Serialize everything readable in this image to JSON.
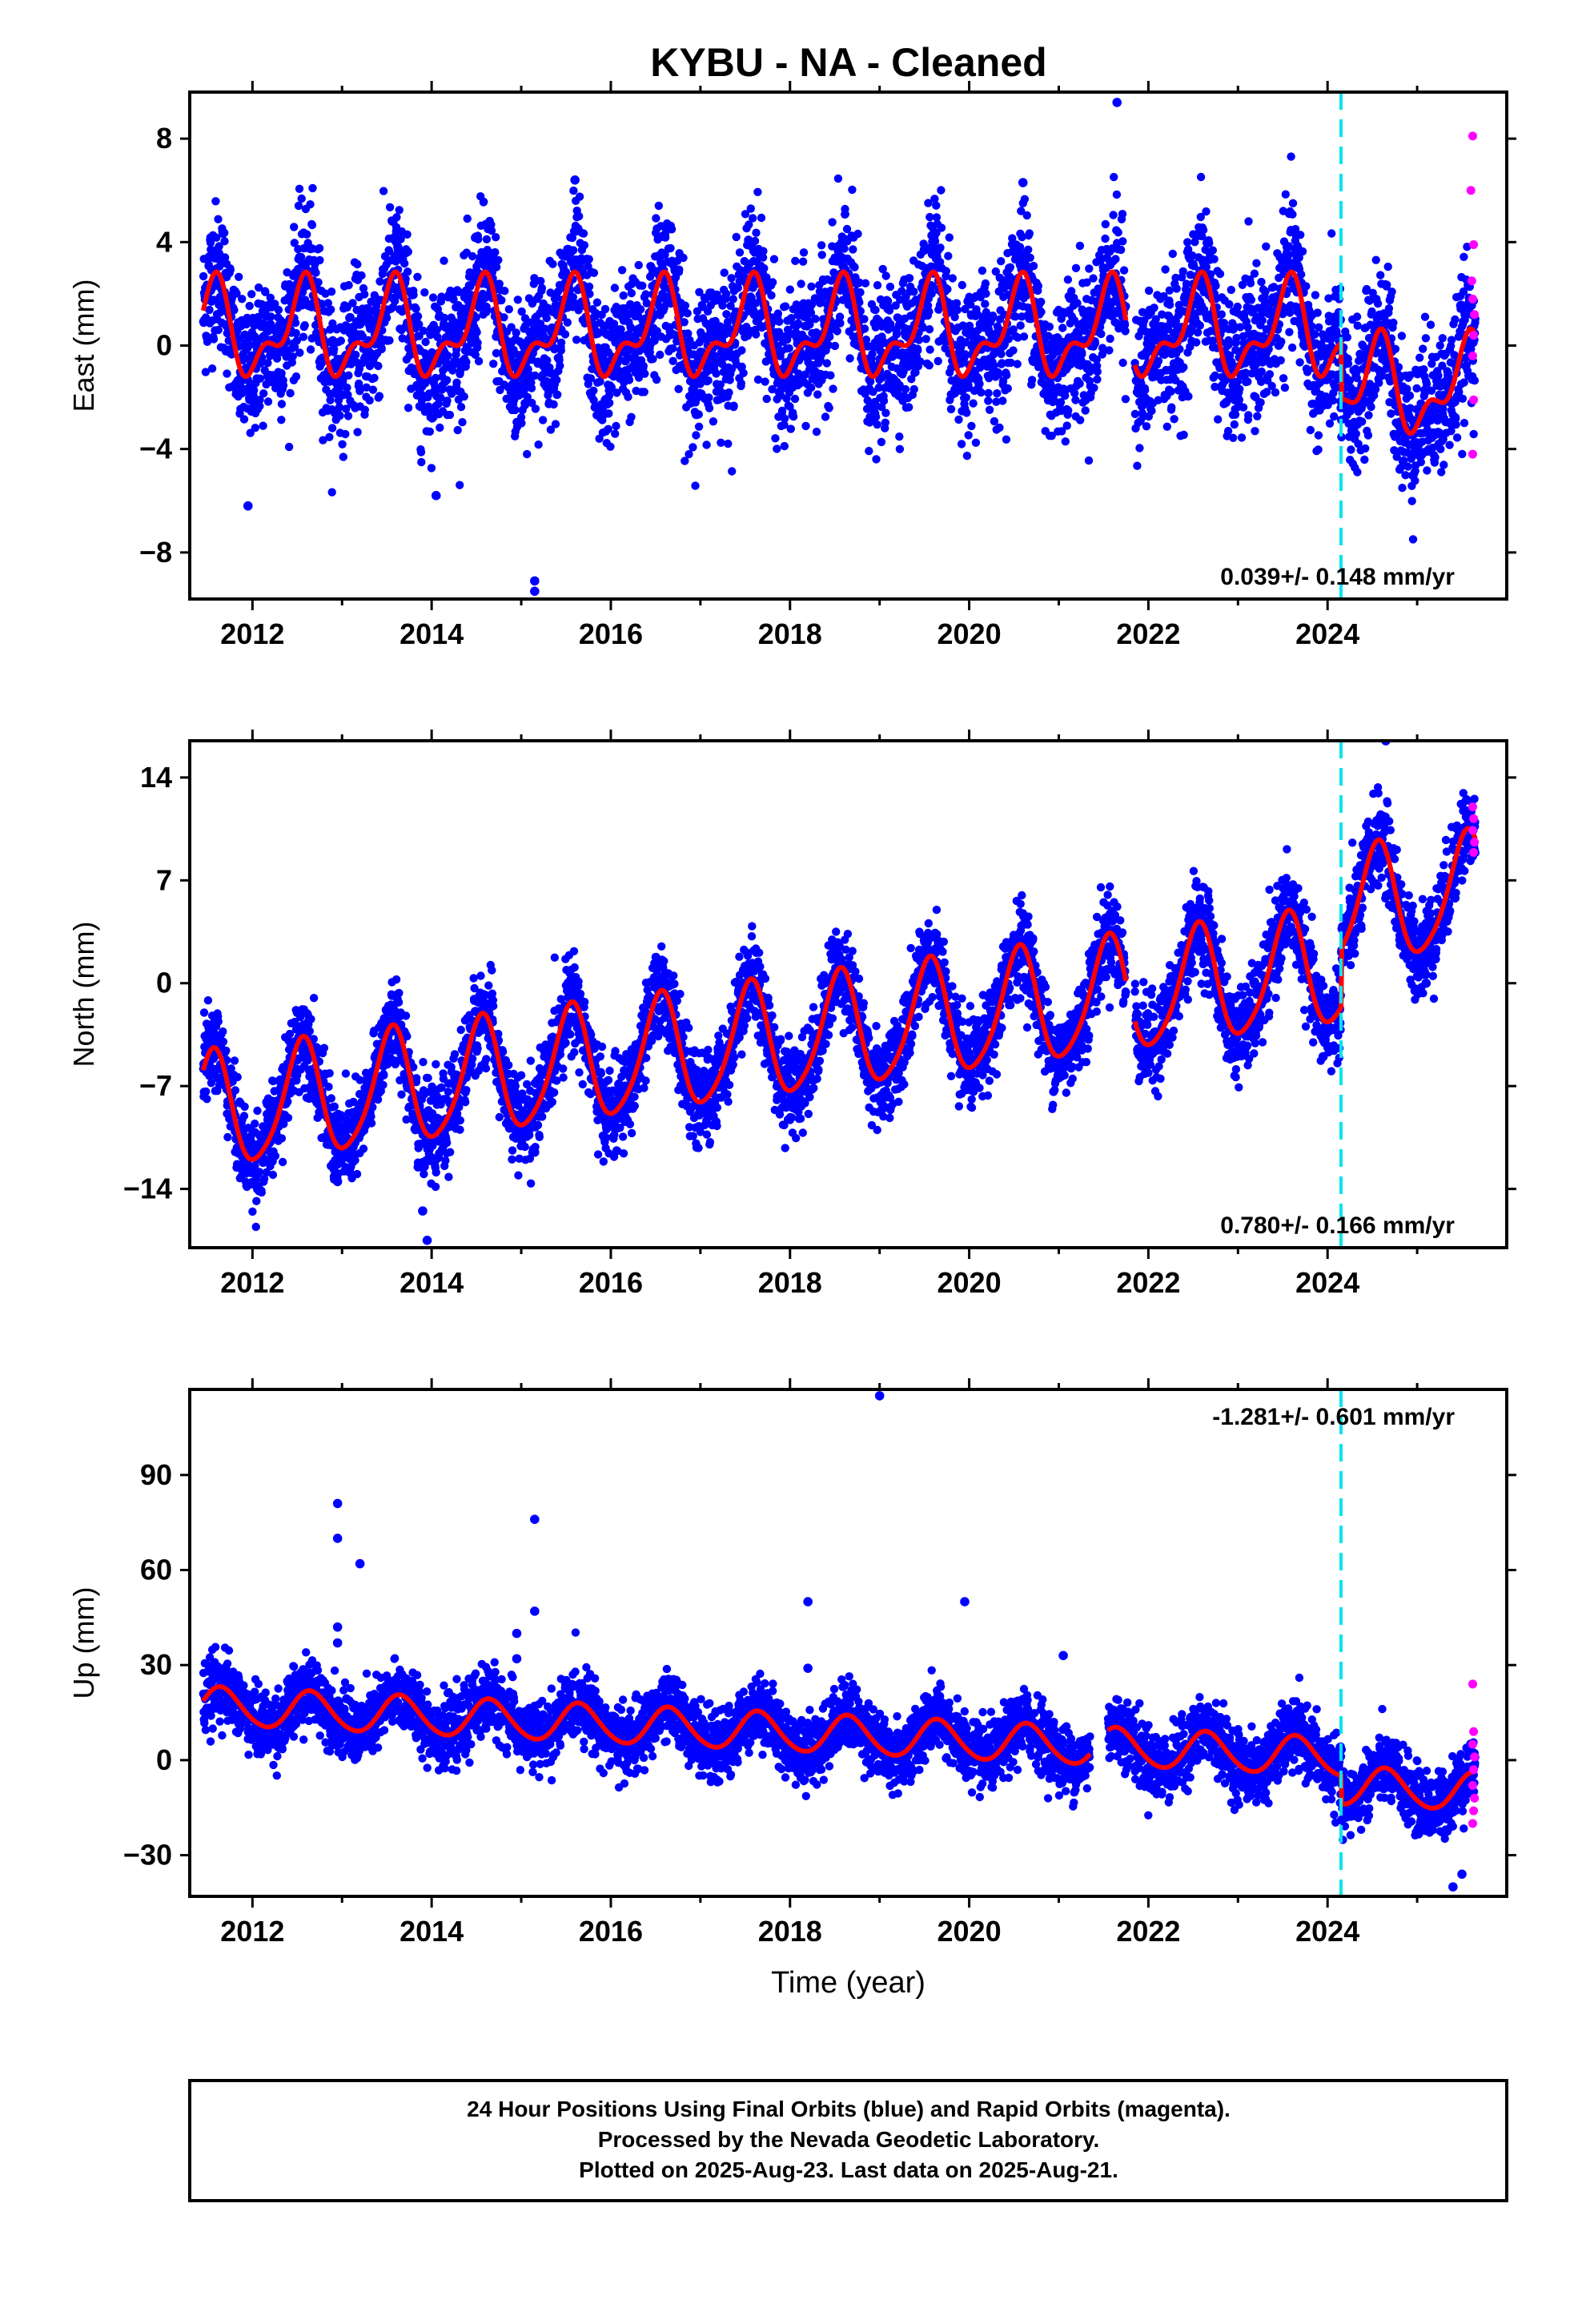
{
  "title": "KYBU  - NA - Cleaned",
  "colors": {
    "final_orbits": "#0000ff",
    "rapid_orbits": "#ff00ff",
    "model_fit": "#ff0000",
    "event_line": "#00e5ee",
    "frame": "#000000"
  },
  "footer": {
    "line1": "24 Hour Positions Using Final Orbits (blue) and Rapid Orbits (magenta).",
    "line2": "Processed by the Nevada Geodetic Laboratory.",
    "line3": "Plotted on 2025-Aug-23. Last data on 2025-Aug-21."
  },
  "chart_data": [
    {
      "type": "scatter",
      "component": "east",
      "ylabel": "East (mm)",
      "xlabel": "",
      "xlim": [
        2011.3,
        2026.0
      ],
      "ylim": [
        -9.8,
        9.8
      ],
      "yticks": [
        8,
        4,
        0,
        -4,
        -8
      ],
      "xticks": [
        2012,
        2014,
        2016,
        2018,
        2020,
        2022,
        2024
      ],
      "rate_label": "0.039+/- 0.148 mm/yr",
      "rate_position": "bottom-right",
      "event_line_x": 2024.15,
      "model": {
        "breaks": [
          {
            "x": 2024.15,
            "offset": -2.2
          }
        ],
        "segments": [
          {
            "from": 2011.45,
            "to": 2021.75,
            "trend": 0.0
          },
          {
            "from": 2021.85,
            "to": 2025.65,
            "trend": 0.0
          }
        ],
        "annual_amp": 1.55,
        "annual_phase": 0.55,
        "semiannual_amp": 0.85,
        "semiannual_phase": 0.62,
        "mean": 0.55,
        "scatter_sd": 1.35
      },
      "outliers": [
        [
          2021.65,
          9.4
        ],
        [
          2015.15,
          -9.1
        ],
        [
          2015.15,
          -9.5
        ],
        [
          2014.05,
          -5.8
        ],
        [
          2011.95,
          -6.2
        ],
        [
          2020.6,
          6.3
        ],
        [
          2015.6,
          6.4
        ]
      ],
      "rapid_points": [
        [
          2025.62,
          8.1
        ],
        [
          2025.6,
          6.0
        ],
        [
          2025.63,
          3.9
        ],
        [
          2025.61,
          2.5
        ],
        [
          2025.62,
          1.8
        ],
        [
          2025.64,
          1.2
        ],
        [
          2025.63,
          0.4
        ],
        [
          2025.62,
          -0.4
        ],
        [
          2025.63,
          -2.1
        ],
        [
          2025.62,
          -4.2
        ]
      ]
    },
    {
      "type": "scatter",
      "component": "north",
      "ylabel": "North (mm)",
      "xlabel": "",
      "xlim": [
        2011.3,
        2026.0
      ],
      "ylim": [
        -18.0,
        16.5
      ],
      "yticks": [
        14,
        7,
        0,
        -7,
        -14
      ],
      "xticks": [
        2012,
        2014,
        2016,
        2018,
        2020,
        2022,
        2024
      ],
      "rate_label": "0.780+/- 0.166 mm/yr",
      "rate_position": "bottom-right",
      "event_line_x": 2024.15,
      "model": {
        "breaks": [
          {
            "x": 2024.15,
            "offset": 4.0
          }
        ],
        "segments": [
          {
            "from": 2011.45,
            "to": 2021.75,
            "trend": 0.78
          },
          {
            "from": 2021.85,
            "to": 2025.65,
            "trend": 0.78
          }
        ],
        "annual_amp": 3.9,
        "annual_phase": 0.55,
        "semiannual_amp": 0.6,
        "semiannual_phase": 0.6,
        "mean": -3.4,
        "scatter_sd": 1.5
      },
      "outliers": [
        [
          2013.95,
          -17.5
        ],
        [
          2013.9,
          -15.5
        ],
        [
          2013.85,
          -12.5
        ],
        [
          2015.15,
          -11.5
        ],
        [
          2012.95,
          -13.5
        ],
        [
          2024.65,
          16.5
        ],
        [
          2025.1,
          0.0
        ],
        [
          2023.95,
          -5.0
        ]
      ],
      "rapid_points": [
        [
          2025.62,
          12.0
        ],
        [
          2025.63,
          11.2
        ],
        [
          2025.62,
          10.4
        ],
        [
          2025.64,
          9.6
        ],
        [
          2025.63,
          8.9
        ]
      ]
    },
    {
      "type": "scatter",
      "component": "up",
      "ylabel": "Up (mm)",
      "xlabel": "Time (year)",
      "xlim": [
        2011.3,
        2026.0
      ],
      "ylim": [
        -43.0,
        117.0
      ],
      "yticks": [
        90,
        60,
        30,
        0,
        -30
      ],
      "xticks": [
        2012,
        2014,
        2016,
        2018,
        2020,
        2022,
        2024
      ],
      "rate_label": "-1.281+/- 0.601 mm/yr",
      "rate_position": "top-right",
      "event_line_x": 2024.15,
      "model": {
        "breaks": [
          {
            "x": 2024.15,
            "offset": -9.0
          }
        ],
        "segments": [
          {
            "from": 2011.45,
            "to": 2021.35,
            "trend": -1.28
          },
          {
            "from": 2021.55,
            "to": 2025.65,
            "trend": -1.28
          }
        ],
        "annual_amp": 6.0,
        "annual_phase": 0.65,
        "semiannual_amp": 0.5,
        "semiannual_phase": 0.6,
        "mean": 8.0,
        "scatter_sd": 5.2
      },
      "outliers": [
        [
          2019.0,
          115
        ],
        [
          2012.95,
          81
        ],
        [
          2012.95,
          70
        ],
        [
          2013.2,
          62
        ],
        [
          2015.15,
          76
        ],
        [
          2015.15,
          47
        ],
        [
          2014.95,
          40
        ],
        [
          2012.95,
          42
        ],
        [
          2012.95,
          37
        ],
        [
          2018.2,
          50
        ],
        [
          2018.2,
          29
        ],
        [
          2019.95,
          50
        ],
        [
          2021.05,
          33
        ],
        [
          2014.95,
          32
        ],
        [
          2025.4,
          -40
        ],
        [
          2025.5,
          -36
        ]
      ],
      "rapid_points": [
        [
          2025.62,
          24
        ],
        [
          2025.63,
          9
        ],
        [
          2025.62,
          5
        ],
        [
          2025.64,
          1
        ],
        [
          2025.63,
          -3
        ],
        [
          2025.62,
          -8
        ],
        [
          2025.64,
          -12
        ],
        [
          2025.63,
          -16
        ],
        [
          2025.62,
          -20
        ]
      ]
    }
  ]
}
